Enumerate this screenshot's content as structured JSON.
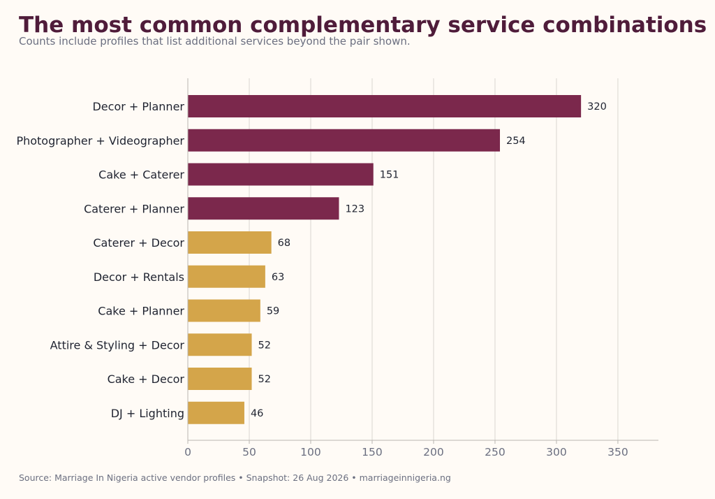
{
  "header": {
    "title": "The most common complementary service combinations",
    "subtitle": "Counts include profiles that list additional services beyond the pair shown."
  },
  "footer": {
    "source": "Source: Marriage In Nigeria active vendor profiles  •  Snapshot: 26 Aug 2026  •  marriageinnigeria.ng"
  },
  "colors": {
    "highlight": "#7b284c",
    "other": "#d4a54a",
    "grid": "#d9d6d0",
    "axis": "#b8b5b0"
  },
  "chart_data": {
    "type": "bar",
    "orientation": "horizontal",
    "title": "The most common complementary service combinations",
    "subtitle": "Counts include profiles that list additional services beyond the pair shown.",
    "xlabel": "",
    "ylabel": "",
    "categories": [
      "Decor + Planner",
      "Photographer + Videographer",
      "Cake + Caterer",
      "Caterer + Planner",
      "Caterer + Decor",
      "Decor + Rentals",
      "Cake + Planner",
      "Attire & Styling + Decor",
      "Cake + Decor",
      "DJ + Lighting"
    ],
    "values": [
      320,
      254,
      151,
      123,
      68,
      63,
      59,
      52,
      52,
      46
    ],
    "highlight_top_n": 4,
    "xlim": [
      0,
      383
    ],
    "xticks": [
      0,
      50,
      100,
      150,
      200,
      250,
      300,
      350
    ],
    "grid": "vertical",
    "legend": "none"
  }
}
